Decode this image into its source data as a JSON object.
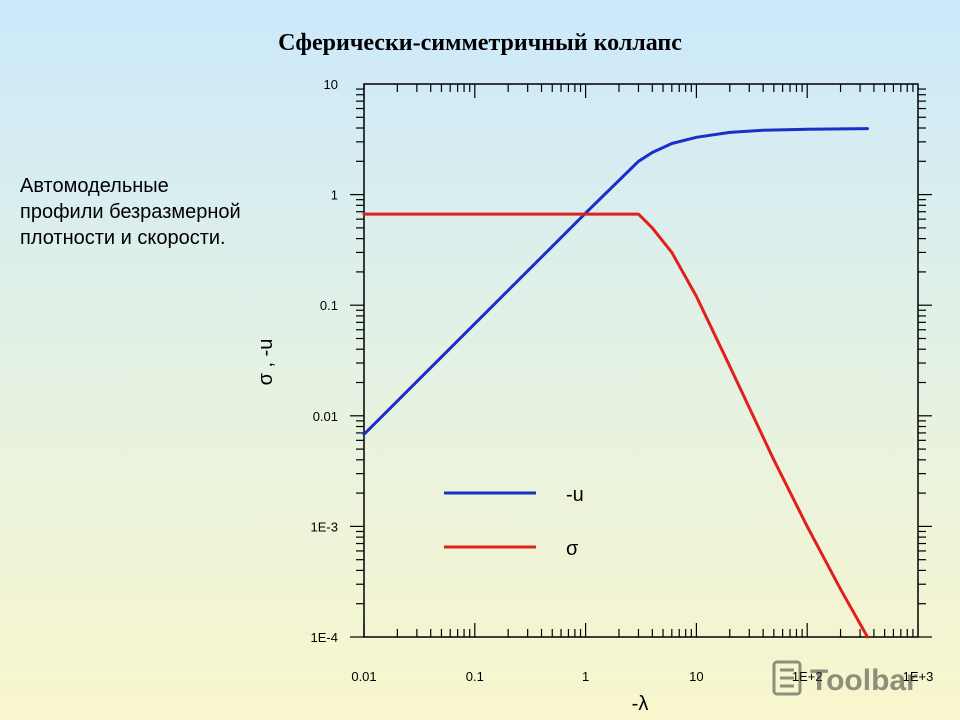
{
  "title": "Сферически-симметричный коллапс",
  "caption": {
    "lines": [
      "Автомодельные",
      "профили безразмерной",
      "плотности и скорости."
    ]
  },
  "chart_data": {
    "type": "line",
    "xscale": "log",
    "yscale": "log",
    "xlim": [
      0.01,
      1000
    ],
    "ylim": [
      0.0001,
      10
    ],
    "xlabel": "-λ",
    "ylabel": "σ , -u",
    "x_ticks": [
      {
        "value": 0.01,
        "label": "0.01"
      },
      {
        "value": 0.1,
        "label": "0.1"
      },
      {
        "value": 1,
        "label": "1"
      },
      {
        "value": 10,
        "label": "10"
      },
      {
        "value": 100,
        "label": "1E+2"
      },
      {
        "value": 1000,
        "label": "1E+3"
      }
    ],
    "y_ticks": [
      {
        "value": 10,
        "label": "10"
      },
      {
        "value": 1,
        "label": "1"
      },
      {
        "value": 0.1,
        "label": "0.1"
      },
      {
        "value": 0.01,
        "label": "0.01"
      },
      {
        "value": 0.001,
        "label": "1E-3"
      },
      {
        "value": 0.0001,
        "label": "1E-4"
      }
    ],
    "grid": false,
    "legend_position": "lower-left",
    "series": [
      {
        "name": "-u",
        "color": "#1a2fc8",
        "points": [
          [
            0.01,
            0.0068
          ],
          [
            0.1,
            0.068
          ],
          [
            1,
            0.68
          ],
          [
            3,
            2.0
          ],
          [
            4,
            2.4
          ],
          [
            6,
            2.9
          ],
          [
            10,
            3.3
          ],
          [
            20,
            3.65
          ],
          [
            40,
            3.82
          ],
          [
            100,
            3.9
          ],
          [
            350,
            3.95
          ]
        ]
      },
      {
        "name": "σ",
        "color": "#e0201c",
        "points": [
          [
            0.01,
            0.667
          ],
          [
            3,
            0.667
          ],
          [
            4,
            0.5
          ],
          [
            6,
            0.3
          ],
          [
            10,
            0.12
          ],
          [
            20,
            0.028
          ],
          [
            50,
            0.004
          ],
          [
            100,
            0.001
          ],
          [
            200,
            0.00027
          ],
          [
            350,
            0.0001
          ]
        ]
      }
    ]
  },
  "logo_text": "Toolbar"
}
